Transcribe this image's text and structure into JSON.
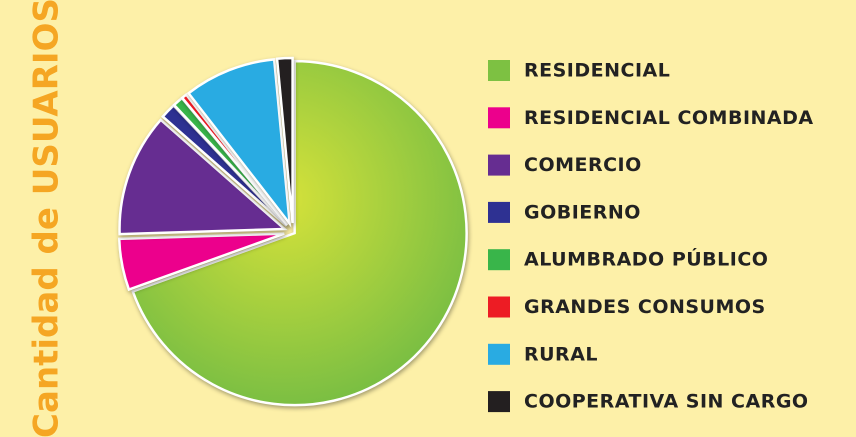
{
  "chart_data": {
    "type": "pie",
    "title": "Cantidad de USUARIOS",
    "categories": [
      "RESIDENCIAL",
      "RESIDENCIAL COMBINADA",
      "COMERCIO",
      "GOBIERNO",
      "ALUMBRADO PÚBLICO",
      "GRANDES CONSUMOS",
      "RURAL",
      "COOPERATIVA SIN CARGO"
    ],
    "values": [
      69.5,
      5,
      12,
      1.5,
      1,
      0.5,
      9,
      1.5
    ],
    "colors": [
      "#7dc142",
      "#ec008c",
      "#662d91",
      "#2e3192",
      "#39b54a",
      "#ed1c24",
      "#29abe2",
      "#231f20"
    ]
  }
}
